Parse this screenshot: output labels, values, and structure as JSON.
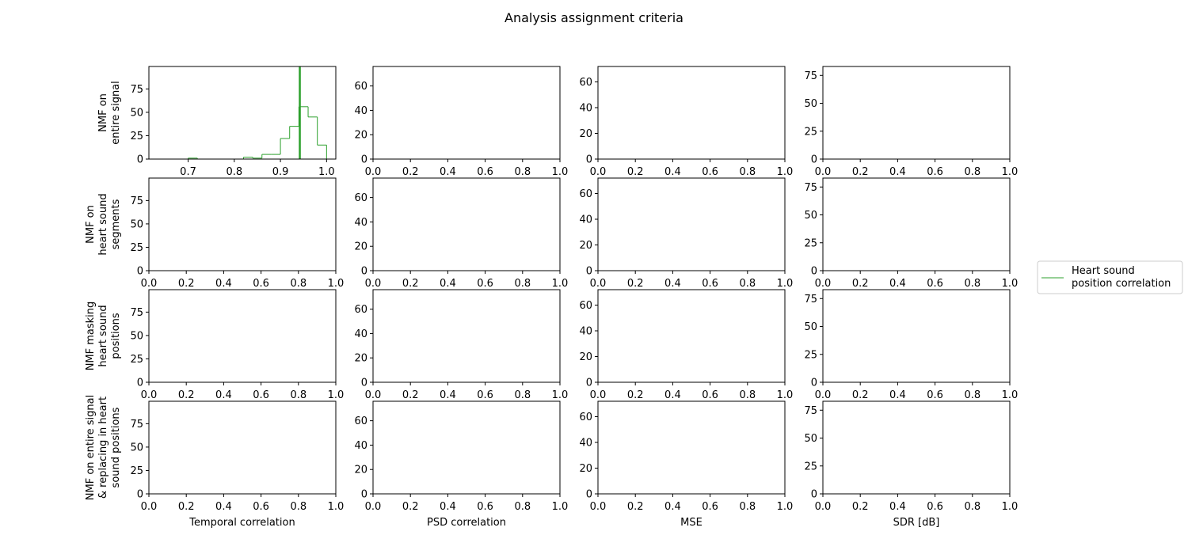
{
  "title": "Analysis assignment criteria",
  "colors": {
    "series": "#2ca02c",
    "axes": "#000000",
    "background": "#ffffff"
  },
  "row_labels": [
    [
      "NMF on",
      "entire signal"
    ],
    [
      "NMF on",
      "heart sound",
      "segments"
    ],
    [
      "NMF masking",
      "heart sound",
      "positions"
    ],
    [
      "NMF on entire signal",
      "& replacing in heart",
      "sound positions"
    ]
  ],
  "column_labels": [
    "Temporal correlation",
    "PSD correlation",
    "MSE",
    "SDR [dB]"
  ],
  "legend": {
    "placement": "right",
    "entries": [
      {
        "label": [
          "Heart sound",
          "position correlation"
        ]
      }
    ]
  },
  "chart_data": {
    "type": "grid of step histograms",
    "rows": 4,
    "columns": 4,
    "default_xlim": [
      0,
      1
    ],
    "default_xticks": [
      "0.0",
      "0.2",
      "0.4",
      "0.6",
      "0.8",
      "1.0"
    ],
    "column_yticks": [
      [
        "0",
        "25",
        "50",
        "75"
      ],
      [
        "0",
        "20",
        "40",
        "60"
      ],
      [
        "0",
        "20",
        "40",
        "60"
      ],
      [
        "0",
        "25",
        "50",
        "75"
      ]
    ],
    "column_ylim": [
      [
        0,
        99
      ],
      [
        0,
        76
      ],
      [
        0,
        72
      ],
      [
        0,
        83
      ]
    ],
    "populated_panel": {
      "row": 0,
      "column": 0,
      "xlim": [
        0.615,
        1.02
      ],
      "xticks": [
        "0.7",
        "0.8",
        "0.9",
        "1.0"
      ],
      "series": [
        {
          "name": "Heart sound position correlation",
          "type": "step-histogram",
          "bin_edges": [
            0.7,
            0.72,
            0.74,
            0.76,
            0.78,
            0.8,
            0.82,
            0.84,
            0.86,
            0.88,
            0.9,
            0.92,
            0.94,
            0.96,
            0.98,
            1.0
          ],
          "counts": [
            1,
            0,
            0,
            0,
            0,
            0,
            2,
            1,
            5,
            5,
            22,
            35,
            56,
            45,
            15
          ]
        }
      ],
      "vertical_line": {
        "x": 0.942
      }
    }
  }
}
